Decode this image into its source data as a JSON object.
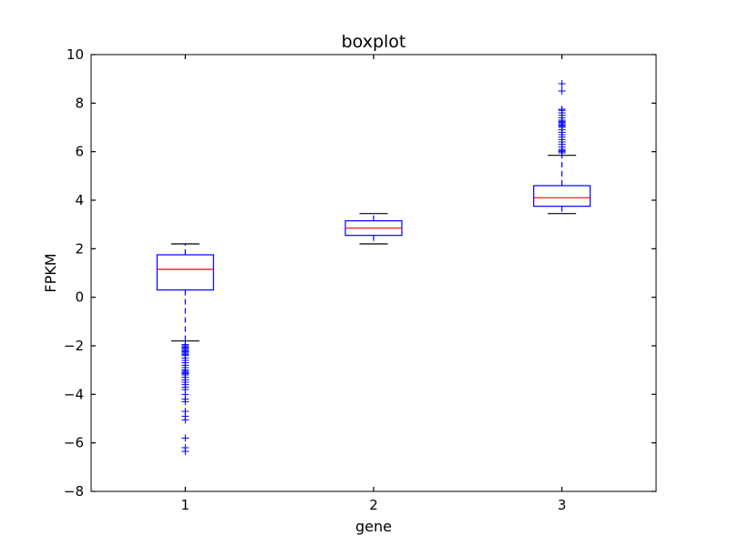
{
  "chart_data": {
    "type": "boxplot",
    "title": "boxplot",
    "xlabel": "gene",
    "ylabel": "FPKM",
    "xlim": [
      0.5,
      3.5
    ],
    "ylim": [
      -8,
      10
    ],
    "yticks": [
      -8,
      -6,
      -4,
      -2,
      0,
      2,
      4,
      6,
      8,
      10
    ],
    "categories": [
      "1",
      "2",
      "3"
    ],
    "grid": false,
    "colors": {
      "box": "#0000ff",
      "median": "#ff0000",
      "whisker": "#0000ff",
      "cap": "#000000",
      "flier": "#0000ff"
    },
    "boxes": [
      {
        "label": "1",
        "whislo": -1.8,
        "q1": 0.3,
        "med": 1.15,
        "q3": 1.75,
        "whishi": 2.2,
        "fliers": [
          -1.95,
          -2.0,
          -2.05,
          -2.1,
          -2.15,
          -2.2,
          -2.25,
          -2.3,
          -2.35,
          -2.4,
          -2.5,
          -2.6,
          -2.7,
          -2.8,
          -2.9,
          -3.0,
          -3.05,
          -3.1,
          -3.15,
          -3.2,
          -3.3,
          -3.4,
          -3.5,
          -3.6,
          -3.7,
          -3.8,
          -4.0,
          -4.2,
          -4.3,
          -4.7,
          -4.9,
          -5.05,
          -5.8,
          -6.2,
          -6.35
        ]
      },
      {
        "label": "2",
        "whislo": 2.2,
        "q1": 2.55,
        "med": 2.85,
        "q3": 3.15,
        "whishi": 3.45,
        "fliers": []
      },
      {
        "label": "3",
        "whislo": 3.45,
        "q1": 3.75,
        "med": 4.1,
        "q3": 4.6,
        "whishi": 5.85,
        "fliers": [
          5.95,
          6.0,
          6.05,
          6.1,
          6.2,
          6.3,
          6.4,
          6.5,
          6.6,
          6.7,
          6.8,
          6.9,
          7.0,
          7.05,
          7.1,
          7.15,
          7.2,
          7.25,
          7.3,
          7.4,
          7.5,
          7.6,
          7.7,
          7.75,
          8.5,
          8.8
        ]
      }
    ]
  }
}
